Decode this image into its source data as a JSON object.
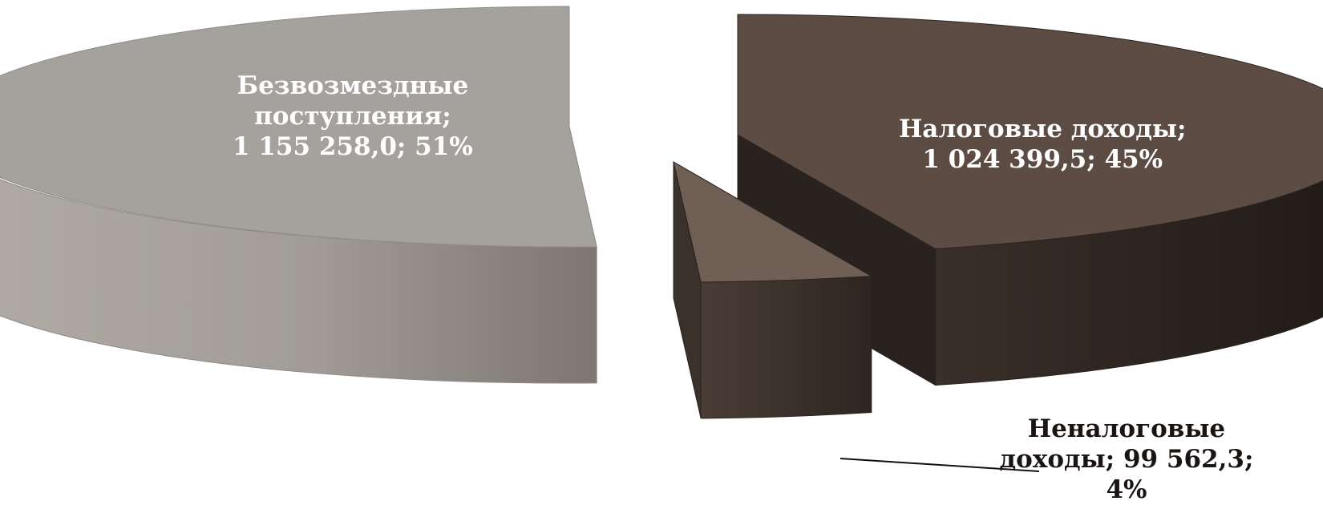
{
  "chart_data": {
    "type": "pie",
    "variant": "3d-exploded",
    "slices": [
      {
        "name": "Налоговые доходы",
        "value": 1024399.5,
        "percent": 45,
        "label_lines": [
          "Налоговые доходы;",
          "1 024 399,5; 45%"
        ],
        "color": "#5c4c44"
      },
      {
        "name": "Неналоговые доходы",
        "value": 99562.3,
        "percent": 4,
        "label_lines": [
          "Неналоговые",
          "доходы; 99 562,3;",
          "4%"
        ],
        "color": "#6f5f55"
      },
      {
        "name": "Безвозмездные поступления",
        "value": 1155258.0,
        "percent": 51,
        "label_lines": [
          "Безвозмездные",
          "поступления;",
          "1 155 258,0; 51%"
        ],
        "color": "#a5a19c"
      }
    ],
    "legend": "none"
  }
}
